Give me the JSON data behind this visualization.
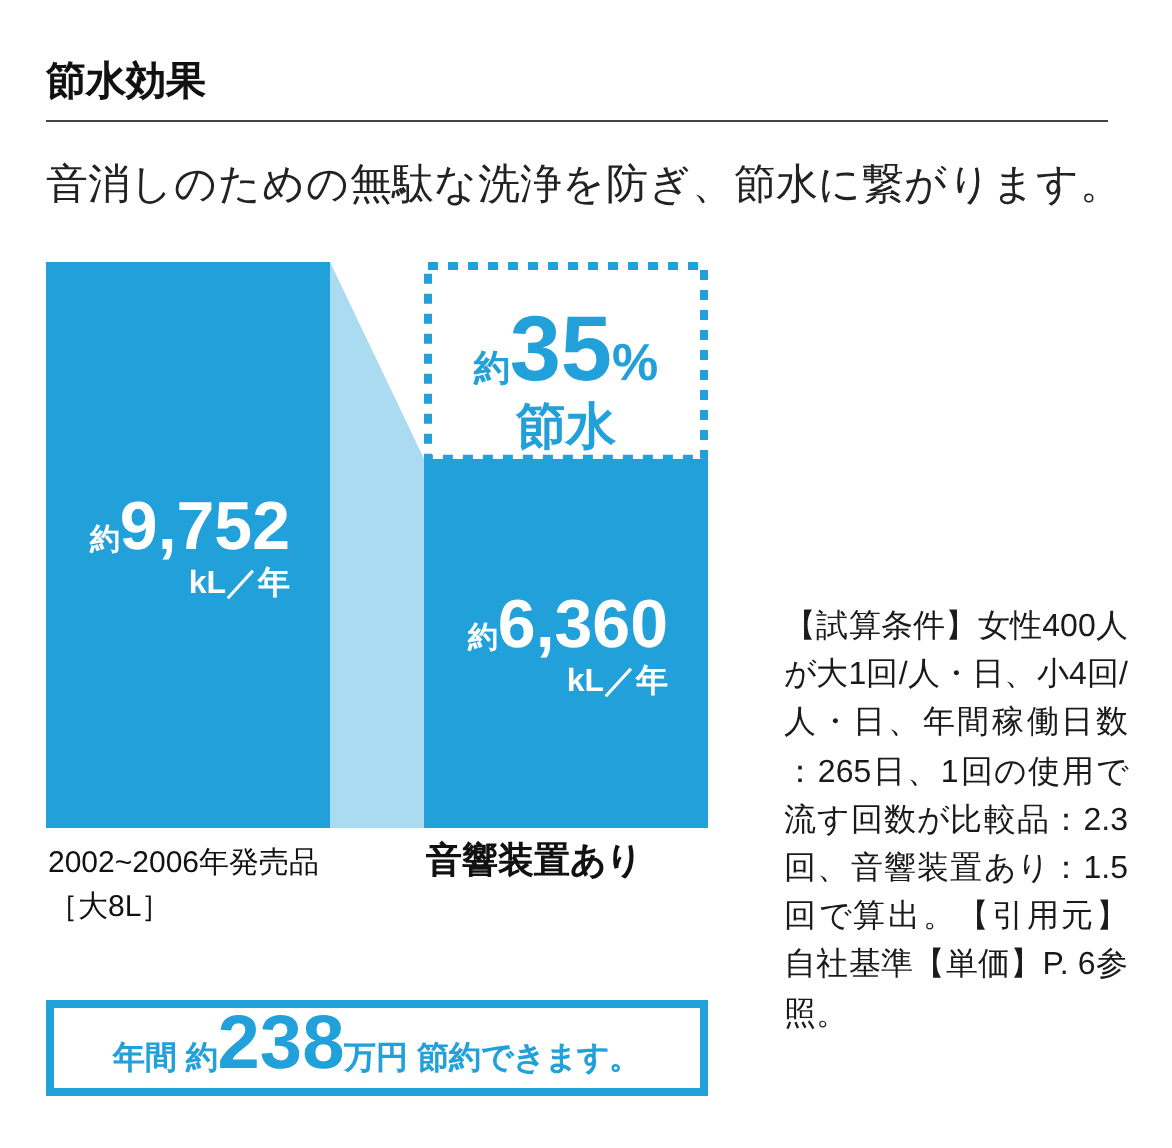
{
  "chart_data": {
    "type": "bar",
    "title": "節水効果",
    "subtitle": "音消しのための無駄な洗浄を防ぎ、節水に繋がります。",
    "categories": [
      "2002~2006年発売品［大8L］",
      "音響装置あり"
    ],
    "values": [
      9752,
      6360
    ],
    "color": "#21a0da",
    "value_labels": [
      "約9,752 kL／年",
      "約6,360 kL／年"
    ],
    "annotations": [
      "約35%節水",
      "年間 約238万円 節約できます。",
      "【試算条件】女性400人が大1回/人・日、小4回/人・日、年間稼働日数：265日、1回の使用で流す回数が比較品：2.3回、音響装置あり：1.5回で算出。【引用元】自社基準【単価】P. 6参照。"
    ]
  }
}
